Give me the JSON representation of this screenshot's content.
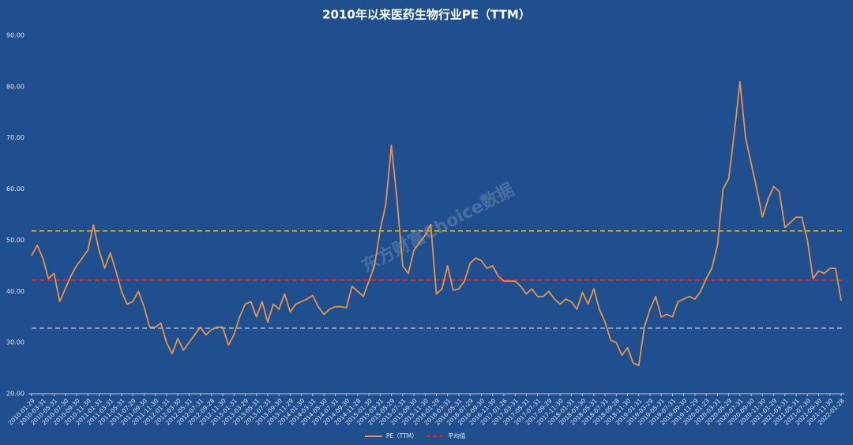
{
  "chart_data": {
    "type": "line",
    "title": "2010年以来医药生物行业PE（TTM）",
    "watermark": "东方财富Choice数据",
    "categories": [
      "2010-01-29",
      null,
      "2010-03-31",
      null,
      "2010-05-31",
      null,
      "2010-07-30",
      null,
      "2010-09-30",
      null,
      "2010-11-30",
      null,
      "2011-01-31",
      null,
      "2011-03-31",
      null,
      "2011-05-31",
      null,
      "2011-07-29",
      null,
      "2011-09-30",
      null,
      "2011-11-30",
      null,
      "2012-01-31",
      null,
      "2012-03-30",
      null,
      "2012-05-31",
      null,
      "2012-07-31",
      null,
      "2012-09-28",
      null,
      "2012-11-30",
      null,
      "2013-01-31",
      null,
      "2013-03-29",
      null,
      "2013-05-31",
      null,
      "2013-07-31",
      null,
      "2013-09-30",
      null,
      "2013-11-29",
      null,
      "2014-01-30",
      null,
      "2014-03-31",
      null,
      "2014-05-30",
      null,
      "2014-07-31",
      null,
      "2014-09-30",
      null,
      "2014-11-28",
      null,
      "2015-01-30",
      null,
      "2015-03-31",
      null,
      "2015-05-29",
      null,
      "2015-07-31",
      null,
      "2015-09-30",
      null,
      "2015-11-30",
      null,
      "2016-01-29",
      null,
      "2016-03-31",
      null,
      "2016-05-31",
      null,
      "2016-07-29",
      null,
      "2016-09-30",
      null,
      "2016-11-30",
      null,
      "2017-01-26",
      null,
      "2017-03-31",
      null,
      "2017-05-31",
      null,
      "2017-07-31",
      null,
      "2017-09-29",
      null,
      "2017-11-30",
      null,
      "2018-01-31",
      null,
      "2018-03-30",
      null,
      "2018-05-31",
      null,
      "2018-07-31",
      null,
      "2018-09-28",
      null,
      "2018-11-30",
      null,
      "2019-01-31",
      null,
      "2019-03-29",
      null,
      "2019-05-31",
      null,
      "2019-07-31",
      null,
      "2019-09-30",
      null,
      "2019-11-29",
      null,
      "2020-01-23",
      null,
      "2020-03-31",
      null,
      "2020-05-29",
      null,
      "2020-07-31",
      null,
      "2020-09-30",
      null,
      "2020-11-30",
      null,
      "2021-01-29",
      null,
      "2021-03-31",
      null,
      "2021-05-31",
      null,
      "2021-07-30",
      null,
      "2021-09-30",
      null,
      "2021-11-30",
      null,
      "2022-01-28"
    ],
    "series": [
      {
        "name": "PE（TTM）",
        "color": "#e8944a",
        "values": [
          47,
          49,
          46.5,
          42.5,
          43.5,
          38,
          40.5,
          43,
          45,
          46.5,
          48,
          53,
          48,
          44.5,
          47.5,
          44,
          40,
          37.5,
          38,
          40,
          37,
          33,
          33,
          33.8,
          30,
          27.8,
          30.8,
          28.5,
          30,
          31.5,
          33,
          31.5,
          32.5,
          33,
          33,
          29.5,
          31.5,
          35,
          37.5,
          38,
          35,
          38,
          34,
          37.5,
          36.5,
          39.5,
          36,
          37.5,
          38,
          38.5,
          39.2,
          37,
          35.5,
          36.5,
          37,
          37,
          36.8,
          41,
          40,
          39,
          42,
          45,
          52,
          57,
          68.5,
          58,
          45,
          43.5,
          48,
          49.5,
          51,
          53,
          39.5,
          40.5,
          45,
          40.2,
          40.5,
          42,
          45.5,
          46.5,
          46,
          44.5,
          45,
          43,
          42,
          42,
          42,
          41,
          39.5,
          40.5,
          39,
          39,
          40,
          38.5,
          37.5,
          38.5,
          38,
          36.5,
          39.8,
          37.5,
          40.5,
          36.5,
          34,
          30.5,
          30,
          27.5,
          29,
          26,
          25.5,
          33,
          36.5,
          39,
          35,
          35.5,
          35,
          38,
          38.5,
          39,
          38.5,
          40,
          42.5,
          44.5,
          49,
          60,
          62,
          71,
          81,
          70,
          65,
          60,
          54.5,
          58,
          60.5,
          59.5,
          52.5,
          53.5,
          54.5,
          54.5,
          50,
          42.5,
          44,
          43.5,
          44.5,
          44.5,
          38.2
        ]
      }
    ],
    "reference_lines": [
      {
        "name": "平均值",
        "value": 42.2,
        "color": "#e02424"
      },
      {
        "value": 51.8,
        "color": "#e8c430"
      },
      {
        "value": 32.8,
        "color": "#b8c4d8"
      }
    ],
    "ylim": [
      20,
      90
    ],
    "yticks": [
      {
        "value": 20,
        "label": "20.00"
      },
      {
        "value": 30,
        "label": "30.00"
      },
      {
        "value": 40,
        "label": "40.00"
      },
      {
        "value": 50,
        "label": "50.00"
      },
      {
        "value": 60,
        "label": "60.00"
      },
      {
        "value": 70,
        "label": "70.00"
      },
      {
        "value": 80,
        "label": "80.00"
      },
      {
        "value": 90,
        "label": "90.00"
      }
    ]
  }
}
